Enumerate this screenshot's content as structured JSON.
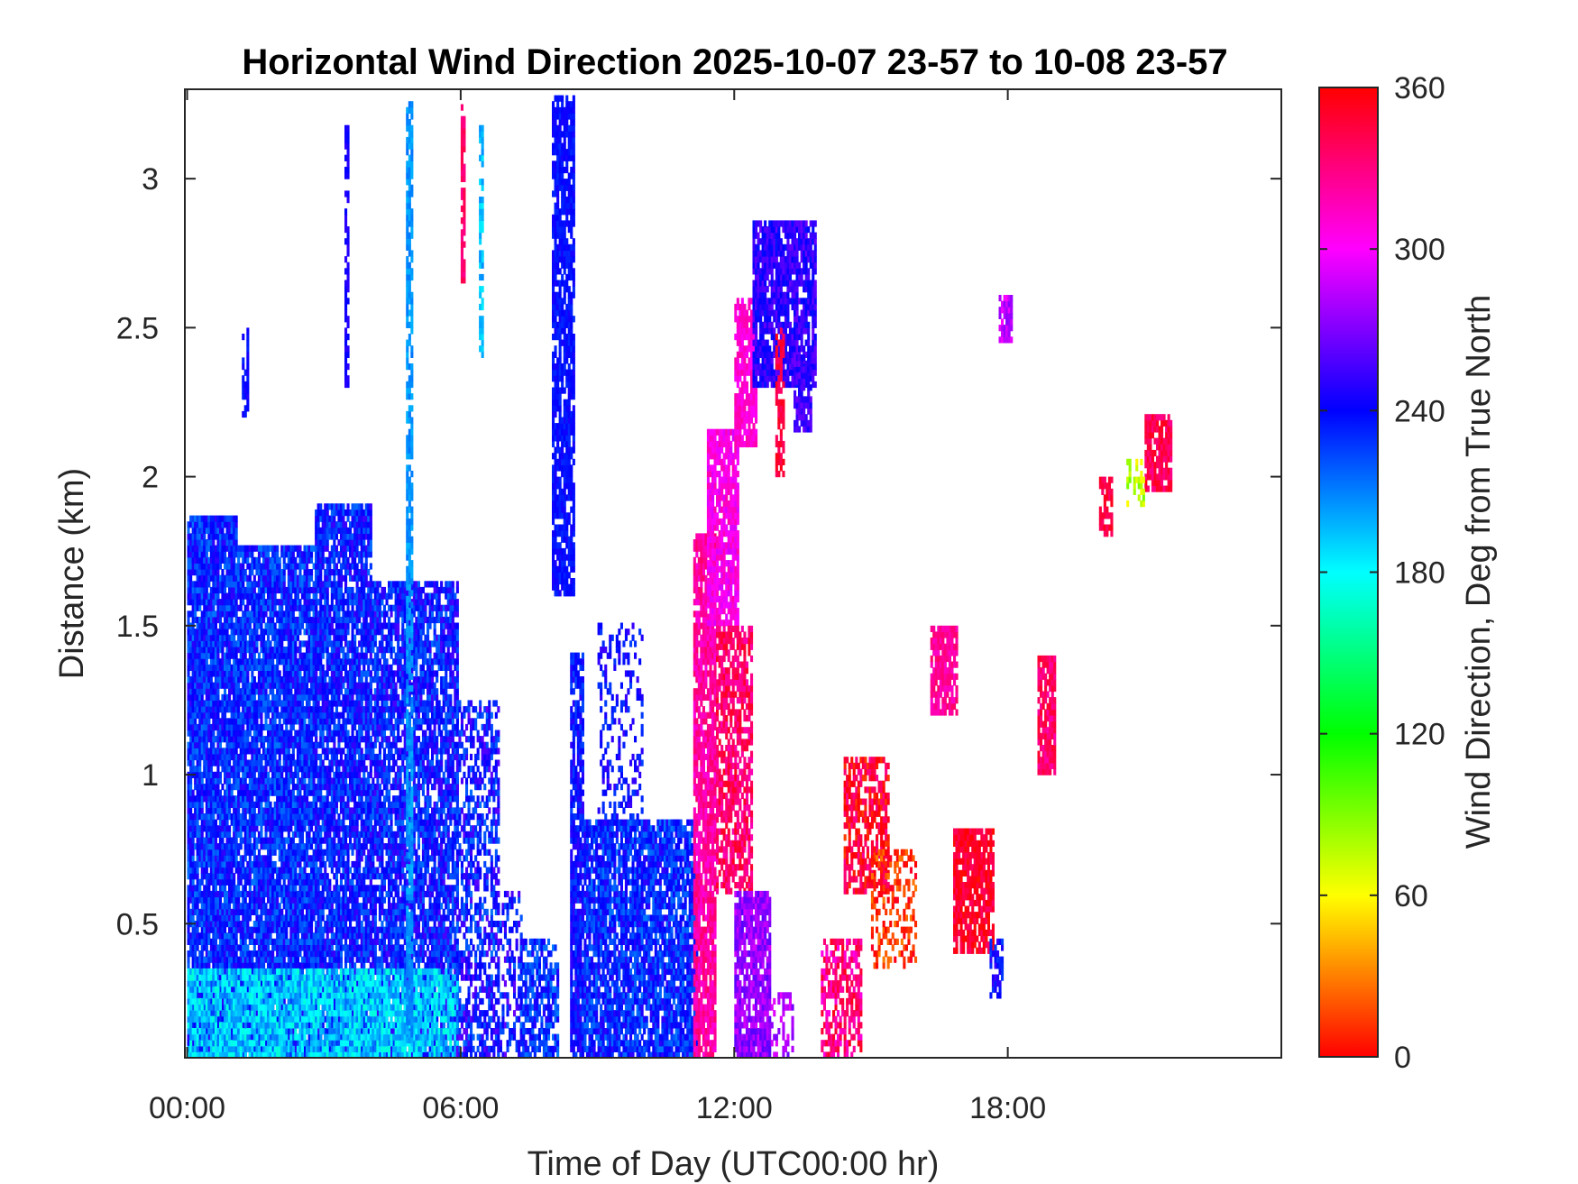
{
  "chart_data": {
    "type": "heatmap",
    "title": "Horizontal Wind Direction 2025-10-07 23-57 to 10-08 23-57",
    "xlabel": "Time of Day (UTC00:00 hr)",
    "ylabel": "Distance (km)",
    "colorbar_label": "Wind Direction, Deg from True North",
    "x_ticks": [
      {
        "value": 0,
        "label": "00:00"
      },
      {
        "value": 6,
        "label": "06:00"
      },
      {
        "value": 12,
        "label": "12:00"
      },
      {
        "value": 18,
        "label": "18:00"
      }
    ],
    "y_ticks": [
      {
        "value": 0.5,
        "label": "0.5"
      },
      {
        "value": 1,
        "label": "1"
      },
      {
        "value": 1.5,
        "label": "1.5"
      },
      {
        "value": 2,
        "label": "2"
      },
      {
        "value": 2.5,
        "label": "2.5"
      },
      {
        "value": 3,
        "label": "3"
      }
    ],
    "colorbar_ticks": [
      {
        "value": 0,
        "label": "0"
      },
      {
        "value": 60,
        "label": "60"
      },
      {
        "value": 120,
        "label": "120"
      },
      {
        "value": 180,
        "label": "180"
      },
      {
        "value": 240,
        "label": "240"
      },
      {
        "value": 300,
        "label": "300"
      },
      {
        "value": 360,
        "label": "360"
      }
    ],
    "xlim": [
      -0.05,
      24.0
    ],
    "ylim": [
      0.05,
      3.3
    ],
    "clim": [
      0,
      360
    ],
    "colormap": "hsv",
    "grid": false,
    "regions": [
      {
        "t0": 0.0,
        "t1": 1.1,
        "h0": 0.05,
        "h1": 1.87,
        "dir": 232,
        "spread": 20,
        "density": 0.93
      },
      {
        "t0": 1.1,
        "t1": 2.8,
        "h0": 0.05,
        "h1": 1.77,
        "dir": 232,
        "spread": 20,
        "density": 0.9
      },
      {
        "t0": 2.8,
        "t1": 4.0,
        "h0": 0.05,
        "h1": 1.9,
        "dir": 235,
        "spread": 20,
        "density": 0.86
      },
      {
        "t0": 4.0,
        "t1": 5.9,
        "h0": 0.05,
        "h1": 1.65,
        "dir": 236,
        "spread": 22,
        "density": 0.8
      },
      {
        "t0": 0.0,
        "t1": 5.9,
        "h0": 0.05,
        "h1": 0.35,
        "dir": 192,
        "spread": 22,
        "density": 0.85
      },
      {
        "t0": 1.2,
        "t1": 1.35,
        "h0": 2.2,
        "h1": 2.5,
        "dir": 240,
        "spread": 8,
        "density": 0.6
      },
      {
        "t0": 3.45,
        "t1": 3.55,
        "h0": 2.3,
        "h1": 3.2,
        "dir": 245,
        "spread": 6,
        "density": 0.7
      },
      {
        "t0": 4.8,
        "t1": 4.92,
        "h0": 0.1,
        "h1": 3.25,
        "dir": 205,
        "spread": 8,
        "density": 0.8
      },
      {
        "t0": 6.0,
        "t1": 6.1,
        "h0": 2.65,
        "h1": 3.25,
        "dir": 335,
        "spread": 8,
        "density": 0.8
      },
      {
        "t0": 6.4,
        "t1": 6.5,
        "h0": 2.4,
        "h1": 3.2,
        "dir": 195,
        "spread": 12,
        "density": 0.6
      },
      {
        "t0": 5.9,
        "t1": 6.8,
        "h0": 0.05,
        "h1": 1.25,
        "dir": 238,
        "spread": 25,
        "density": 0.55
      },
      {
        "t0": 6.8,
        "t1": 7.3,
        "h0": 0.05,
        "h1": 0.6,
        "dir": 240,
        "spread": 25,
        "density": 0.35
      },
      {
        "t0": 7.3,
        "t1": 8.1,
        "h0": 0.05,
        "h1": 0.45,
        "dir": 230,
        "spread": 20,
        "density": 0.7
      },
      {
        "t0": 8.0,
        "t1": 8.5,
        "h0": 1.6,
        "h1": 3.28,
        "dir": 238,
        "spread": 8,
        "density": 0.8
      },
      {
        "t0": 8.4,
        "t1": 8.7,
        "h0": 0.05,
        "h1": 1.4,
        "dir": 238,
        "spread": 15,
        "density": 0.85
      },
      {
        "t0": 8.7,
        "t1": 11.2,
        "h0": 0.05,
        "h1": 0.85,
        "dir": 232,
        "spread": 20,
        "density": 0.85
      },
      {
        "t0": 9.0,
        "t1": 10.0,
        "h0": 0.85,
        "h1": 1.5,
        "dir": 240,
        "spread": 15,
        "density": 0.3
      },
      {
        "t0": 11.1,
        "t1": 11.6,
        "h0": 0.05,
        "h1": 1.8,
        "dir": 322,
        "spread": 14,
        "density": 0.85
      },
      {
        "t0": 11.4,
        "t1": 12.1,
        "h0": 1.5,
        "h1": 2.15,
        "dir": 305,
        "spread": 15,
        "density": 0.85
      },
      {
        "t0": 11.6,
        "t1": 12.4,
        "h0": 0.6,
        "h1": 1.5,
        "dir": 335,
        "spread": 18,
        "density": 0.7
      },
      {
        "t0": 12.0,
        "t1": 12.5,
        "h0": 2.1,
        "h1": 2.6,
        "dir": 310,
        "spread": 10,
        "density": 0.8
      },
      {
        "t0": 12.4,
        "t1": 13.8,
        "h0": 2.3,
        "h1": 2.85,
        "dir": 250,
        "spread": 15,
        "density": 0.85
      },
      {
        "t0": 13.3,
        "t1": 13.7,
        "h0": 2.15,
        "h1": 2.4,
        "dir": 255,
        "spread": 12,
        "density": 0.8
      },
      {
        "t0": 12.9,
        "t1": 13.1,
        "h0": 2.0,
        "h1": 2.5,
        "dir": 345,
        "spread": 10,
        "density": 0.6
      },
      {
        "t0": 12.0,
        "t1": 12.8,
        "h0": 0.05,
        "h1": 0.6,
        "dir": 275,
        "spread": 15,
        "density": 0.85
      },
      {
        "t0": 12.8,
        "t1": 13.3,
        "h0": 0.05,
        "h1": 0.25,
        "dir": 280,
        "spread": 15,
        "density": 0.4
      },
      {
        "t0": 13.9,
        "t1": 14.8,
        "h0": 0.05,
        "h1": 0.45,
        "dir": 330,
        "spread": 25,
        "density": 0.6
      },
      {
        "t0": 14.4,
        "t1": 15.4,
        "h0": 0.6,
        "h1": 1.05,
        "dir": 350,
        "spread": 25,
        "density": 0.65
      },
      {
        "t0": 15.0,
        "t1": 16.0,
        "h0": 0.35,
        "h1": 0.75,
        "dir": 10,
        "spread": 20,
        "density": 0.35
      },
      {
        "t0": 16.3,
        "t1": 16.9,
        "h0": 1.2,
        "h1": 1.5,
        "dir": 325,
        "spread": 12,
        "density": 0.85
      },
      {
        "t0": 16.8,
        "t1": 17.7,
        "h0": 0.4,
        "h1": 0.82,
        "dir": 350,
        "spread": 14,
        "density": 0.85
      },
      {
        "t0": 17.6,
        "t1": 17.9,
        "h0": 0.25,
        "h1": 0.45,
        "dir": 240,
        "spread": 15,
        "density": 0.6
      },
      {
        "t0": 17.8,
        "t1": 18.1,
        "h0": 2.45,
        "h1": 2.6,
        "dir": 285,
        "spread": 15,
        "density": 0.8
      },
      {
        "t0": 18.65,
        "t1": 19.05,
        "h0": 1.0,
        "h1": 1.4,
        "dir": 335,
        "spread": 15,
        "density": 0.85
      },
      {
        "t0": 20.0,
        "t1": 20.3,
        "h0": 1.8,
        "h1": 2.0,
        "dir": 345,
        "spread": 10,
        "density": 0.7
      },
      {
        "t0": 21.0,
        "t1": 21.6,
        "h0": 1.95,
        "h1": 2.2,
        "dir": 340,
        "spread": 14,
        "density": 0.85
      },
      {
        "t0": 20.6,
        "t1": 21.0,
        "h0": 1.9,
        "h1": 2.05,
        "dir": 75,
        "spread": 20,
        "density": 0.4
      }
    ]
  }
}
